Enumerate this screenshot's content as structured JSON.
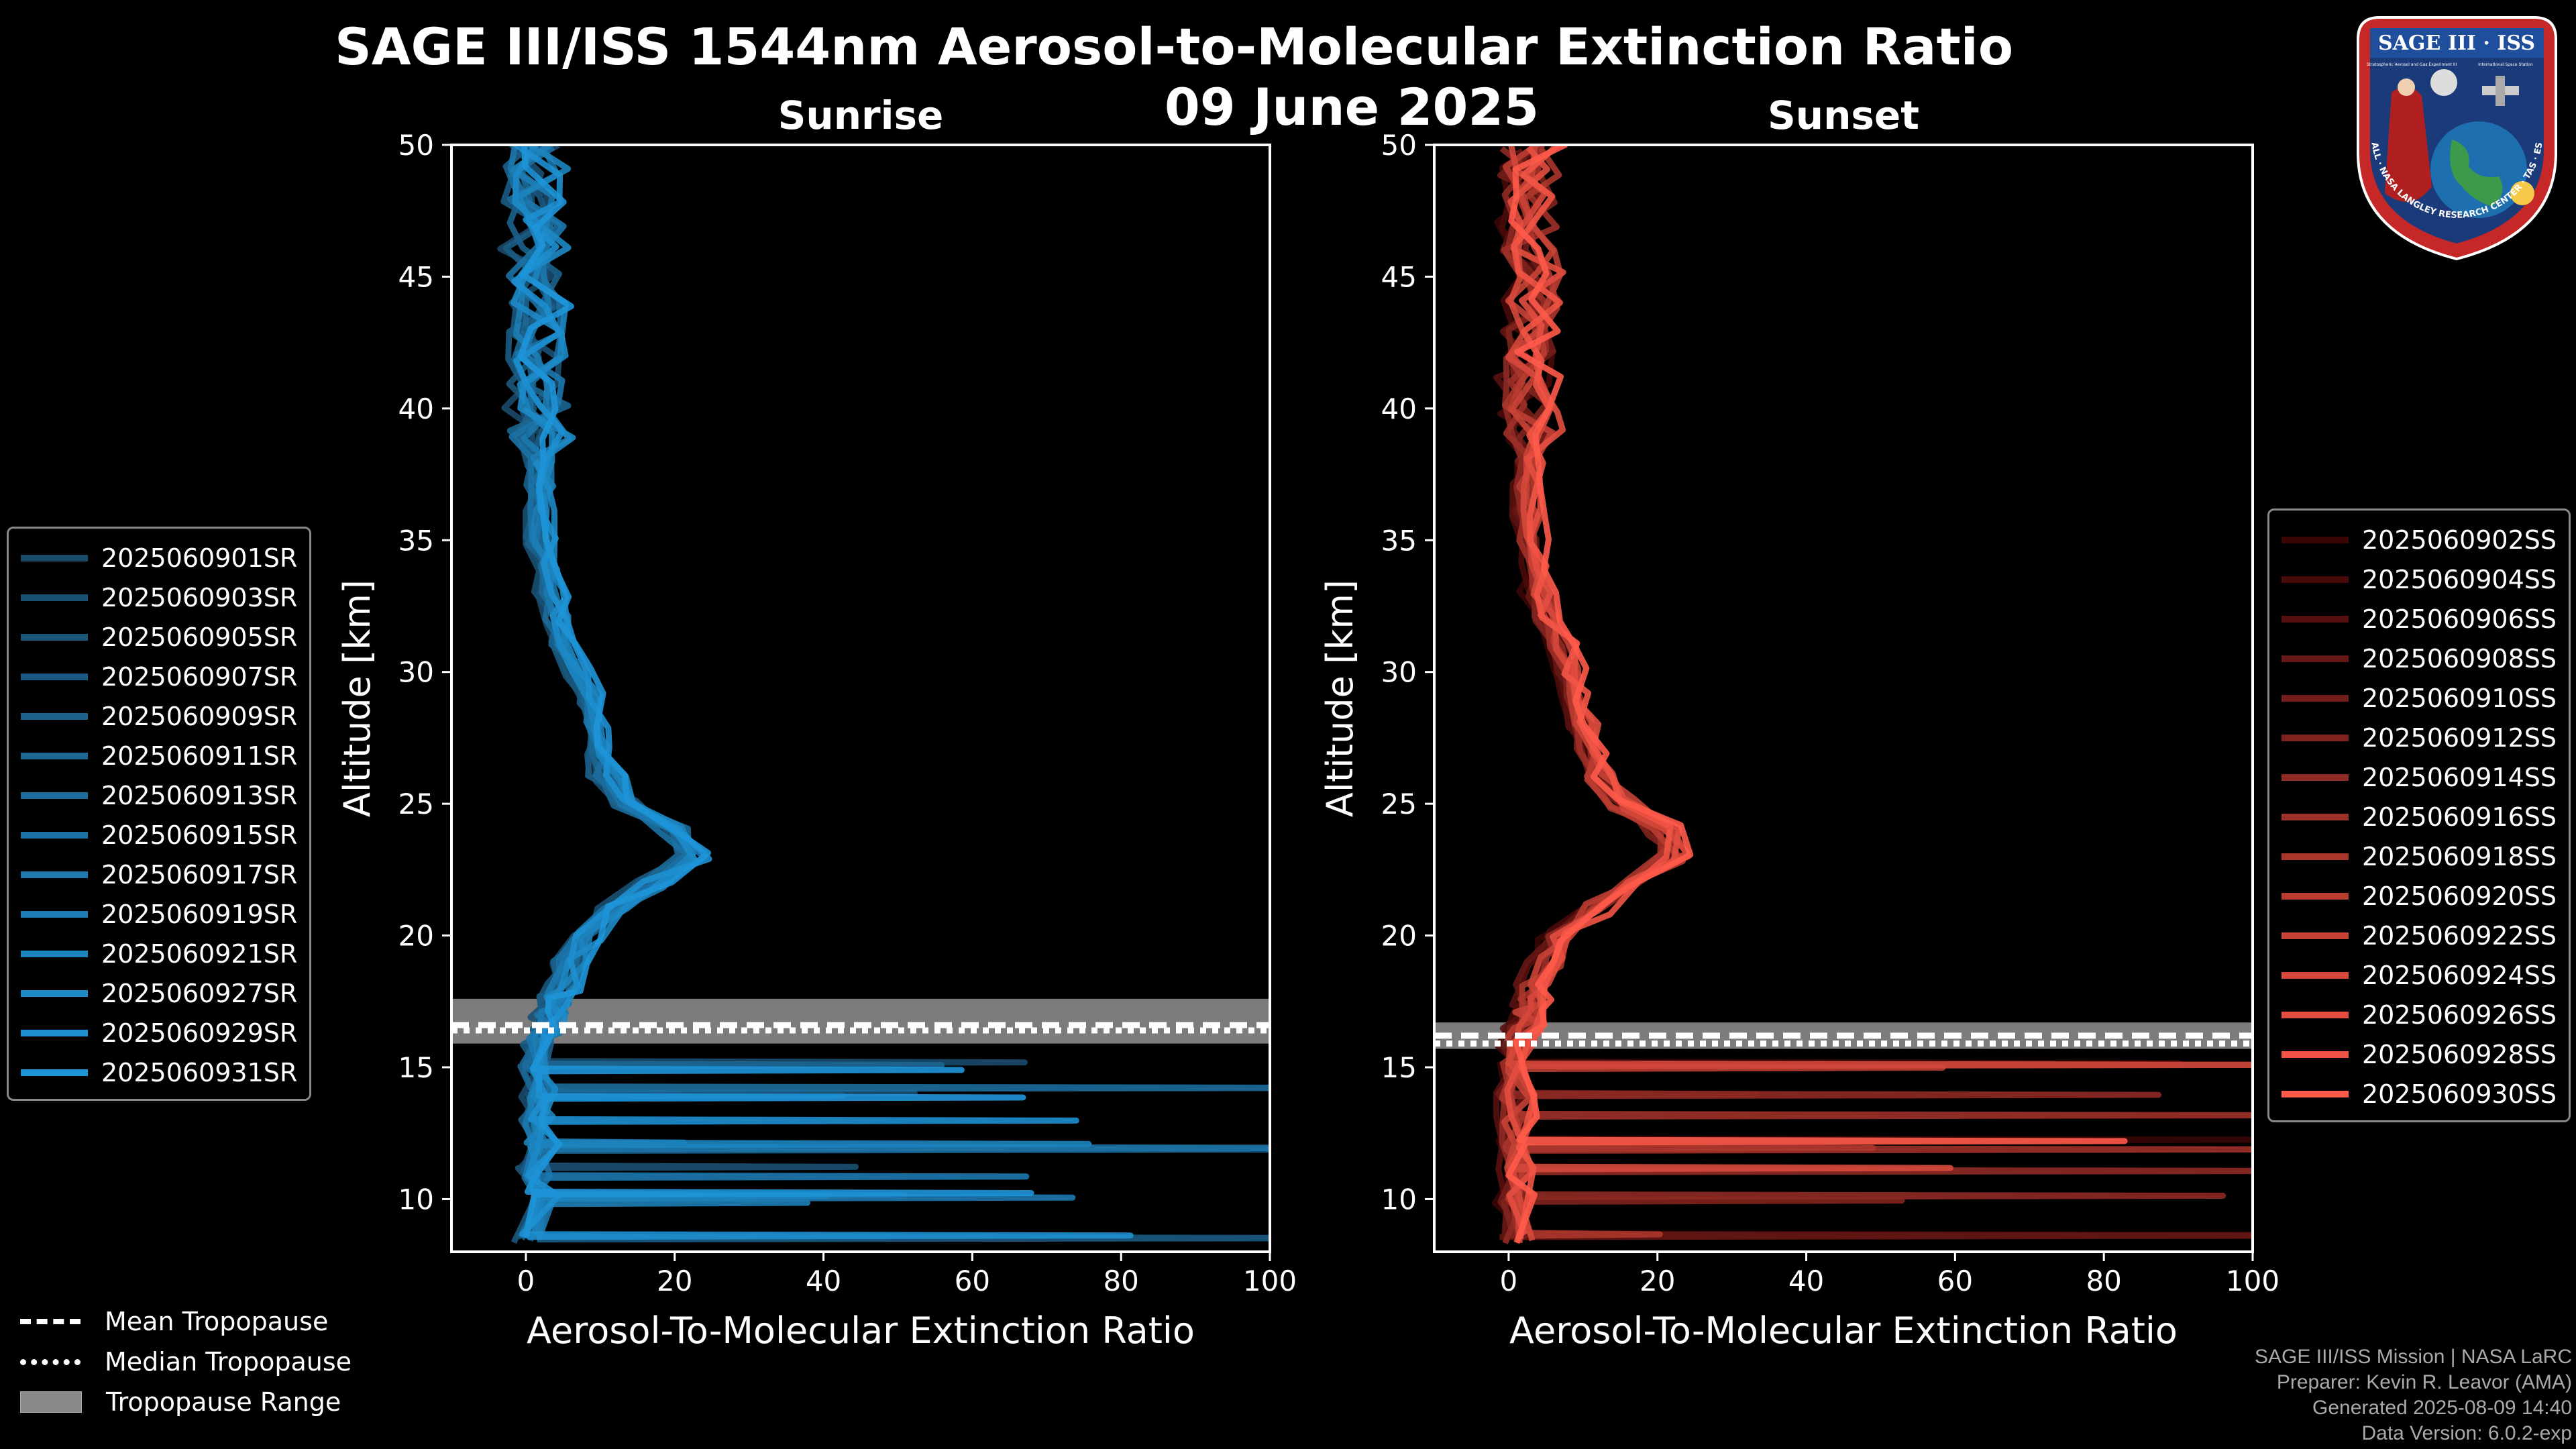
{
  "figure": {
    "title": "SAGE III/ISS 1544nm Aerosol-to-Molecular Extinction Ratio",
    "date": "09 June 2025"
  },
  "logo": {
    "text_top": "SAGE III · ISS",
    "text_small_left": "Stratospheric Aerosol and Gas Experiment III",
    "text_small_right": "International Space Station",
    "ring_text": "BALL · NASA LANGLEY RESEARCH CENTER · TAS · ESA"
  },
  "legend_tropopause": {
    "mean_label": "Mean Tropopause",
    "median_label": "Median Tropopause",
    "range_label": "Tropopause Range"
  },
  "footer": {
    "line1": "SAGE III/ISS Mission | NASA LaRC",
    "line2": "Preparer: Kevin R. Leavor (AMA)",
    "line3": "Generated 2025-08-09 14:40",
    "line4": "Data Version: 6.0.2-exp"
  },
  "colors": {
    "sunrise_dark": "#1a4a6a",
    "sunrise_light": "#1e95d8",
    "sunset_dark": "#3a0505",
    "sunset_light": "#ff5a4a",
    "tropopause_band": "#8a8a8a"
  },
  "chart_data": [
    {
      "type": "line",
      "title": "Sunrise",
      "xlabel": "Aerosol-To-Molecular Extinction Ratio",
      "ylabel": "Altitude [km]",
      "xlim": [
        -10,
        100
      ],
      "ylim": [
        8,
        50
      ],
      "xticks": [
        "0",
        "20",
        "40",
        "60",
        "80",
        "100"
      ],
      "yticks": [
        "10",
        "15",
        "20",
        "25",
        "30",
        "35",
        "40",
        "45",
        "50"
      ],
      "xtick_values": [
        0,
        20,
        40,
        60,
        80,
        100
      ],
      "ytick_values": [
        10,
        15,
        20,
        25,
        30,
        35,
        40,
        45,
        50
      ],
      "tropopause": {
        "mean": 16.6,
        "median": 16.4,
        "range": [
          15.9,
          17.6
        ]
      },
      "legend": [
        "2025060901SR",
        "2025060903SR",
        "2025060905SR",
        "2025060907SR",
        "2025060909SR",
        "2025060911SR",
        "2025060913SR",
        "2025060915SR",
        "2025060917SR",
        "2025060919SR",
        "2025060921SR",
        "2025060927SR",
        "2025060929SR",
        "2025060931SR"
      ],
      "altitude": [
        8.5,
        10,
        11,
        12,
        13,
        14,
        15,
        16,
        16.5,
        17,
        17.5,
        18,
        19,
        20,
        21,
        22,
        23,
        24,
        25,
        26,
        27,
        28,
        29,
        30,
        31,
        32,
        33,
        34,
        35,
        36,
        37,
        38,
        39,
        40,
        41,
        42,
        43,
        44,
        45,
        46,
        47,
        48,
        49,
        50
      ],
      "profile": [
        1,
        2,
        1.5,
        2,
        1.5,
        1.5,
        1.5,
        2,
        3,
        3.5,
        4,
        4.5,
        6,
        8,
        12,
        17,
        22,
        20,
        14,
        11,
        10,
        9,
        8,
        7,
        5,
        4,
        3.5,
        3,
        2,
        2,
        2,
        2,
        2,
        2,
        2,
        1.5,
        1.5,
        1.5,
        1.5,
        1.5,
        1.5,
        1.5,
        1.5,
        1.5
      ]
    },
    {
      "type": "line",
      "title": "Sunset",
      "xlabel": "Aerosol-To-Molecular Extinction Ratio",
      "ylabel": "Altitude [km]",
      "xlim": [
        -10,
        100
      ],
      "ylim": [
        8,
        50
      ],
      "xticks": [
        "0",
        "20",
        "40",
        "60",
        "80",
        "100"
      ],
      "yticks": [
        "10",
        "15",
        "20",
        "25",
        "30",
        "35",
        "40",
        "45",
        "50"
      ],
      "xtick_values": [
        0,
        20,
        40,
        60,
        80,
        100
      ],
      "ytick_values": [
        10,
        15,
        20,
        25,
        30,
        35,
        40,
        45,
        50
      ],
      "tropopause": {
        "mean": 16.2,
        "median": 15.9,
        "range": [
          15.7,
          16.7
        ]
      },
      "legend": [
        "2025060902SS",
        "2025060904SS",
        "2025060906SS",
        "2025060908SS",
        "2025060910SS",
        "2025060912SS",
        "2025060914SS",
        "2025060916SS",
        "2025060918SS",
        "2025060920SS",
        "2025060922SS",
        "2025060924SS",
        "2025060926SS",
        "2025060928SS",
        "2025060930SS"
      ],
      "altitude": [
        8.5,
        10,
        11,
        12,
        13,
        14,
        15,
        16,
        16.5,
        17,
        17.5,
        18,
        19,
        20,
        21,
        22,
        23,
        24,
        25,
        26,
        27,
        28,
        29,
        30,
        31,
        32,
        33,
        34,
        35,
        36,
        37,
        38,
        39,
        40,
        41,
        42,
        43,
        44,
        45,
        46,
        47,
        48,
        49,
        50
      ],
      "profile": [
        1,
        1,
        1,
        1,
        1,
        1,
        1,
        1.5,
        2,
        2.5,
        3,
        3.5,
        5,
        7,
        12,
        17,
        22,
        21,
        15,
        12,
        11,
        10,
        9,
        8,
        7,
        5,
        4,
        3.5,
        3,
        2.5,
        2.5,
        3,
        3,
        3,
        3,
        3,
        3,
        3,
        3,
        3,
        3,
        3,
        3,
        3
      ]
    }
  ]
}
